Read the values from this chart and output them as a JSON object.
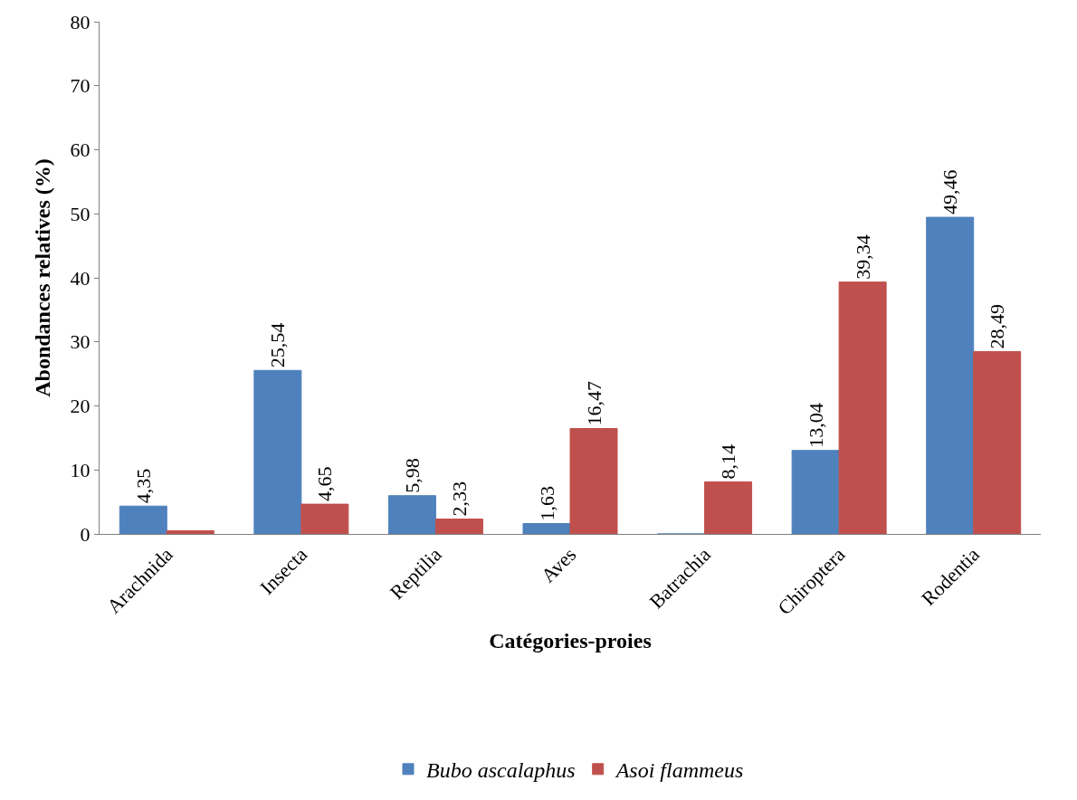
{
  "chart_data": {
    "type": "bar",
    "xlabel": "Catégories-proies",
    "ylabel": "Abondances relatives (%)",
    "categories": [
      "Arachnida",
      "Insecta",
      "Reptilia",
      "Aves",
      "Batrachia",
      "Chiroptera",
      "Rodentia"
    ],
    "series": [
      {
        "name": "Bubo ascalaphus",
        "color": "#4f81bd",
        "values": [
          4.35,
          25.54,
          5.98,
          1.63,
          0,
          13.04,
          49.46
        ],
        "value_labels": [
          "4,35",
          "25,54",
          "5,98",
          "1,63",
          null,
          "13,04",
          "49,46"
        ]
      },
      {
        "name": "Asoi flammeus",
        "color": "#c0504d",
        "values": [
          0.5,
          4.65,
          2.33,
          16.47,
          8.14,
          39.34,
          28.49
        ],
        "value_labels": [
          null,
          "4,65",
          "2,33",
          "16,47",
          "8,14",
          "39,34",
          "28,49"
        ]
      }
    ],
    "ylim": [
      0,
      80
    ],
    "yticks": [
      0,
      10,
      20,
      30,
      40,
      50,
      60,
      70,
      80
    ],
    "legend": "bottom"
  }
}
